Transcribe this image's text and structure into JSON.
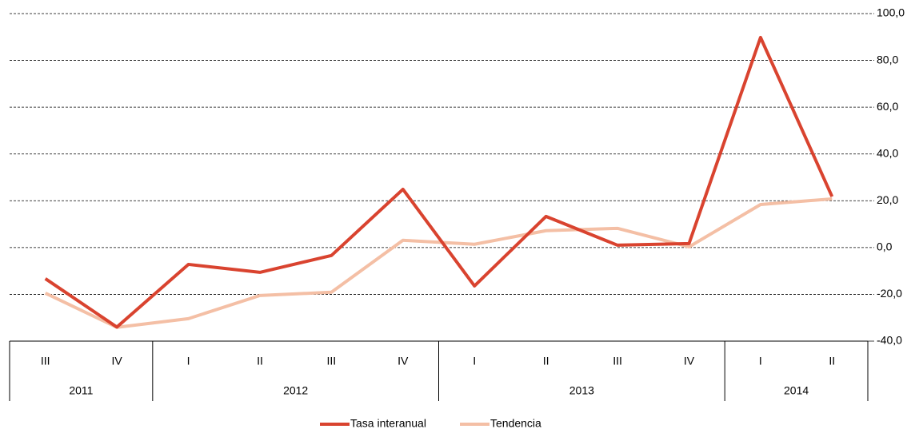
{
  "chart_data": {
    "type": "line",
    "categories": [
      "III",
      "IV",
      "I",
      "II",
      "III",
      "IV",
      "I",
      "II",
      "III",
      "IV",
      "I",
      "II"
    ],
    "groups": [
      {
        "label": "2011",
        "count": 2
      },
      {
        "label": "2012",
        "count": 4
      },
      {
        "label": "2013",
        "count": 4
      },
      {
        "label": "2014",
        "count": 2
      }
    ],
    "series": [
      {
        "name": "Tasa interanual",
        "color": "#d9432f",
        "values": [
          -13.3,
          -34.0,
          -7.2,
          -10.6,
          -3.4,
          24.9,
          -16.4,
          13.3,
          1.0,
          1.7,
          89.8,
          21.8
        ]
      },
      {
        "name": "Tendencia",
        "color": "#f4bfa5",
        "values": [
          -19.5,
          -34.1,
          -30.4,
          -20.5,
          -19.1,
          3.1,
          1.4,
          7.2,
          8.2,
          0.3,
          18.4,
          20.8
        ]
      }
    ],
    "ylim": [
      -40,
      100
    ],
    "yticks": [
      {
        "value": -40,
        "label": "-40,0"
      },
      {
        "value": -20,
        "label": "-20,0"
      },
      {
        "value": 0,
        "label": "0,0"
      },
      {
        "value": 20,
        "label": "20,0"
      },
      {
        "value": 40,
        "label": "40,0"
      },
      {
        "value": 60,
        "label": "60,0"
      },
      {
        "value": 80,
        "label": "80,0"
      },
      {
        "value": 100,
        "label": "100,0"
      }
    ],
    "grid": true
  }
}
